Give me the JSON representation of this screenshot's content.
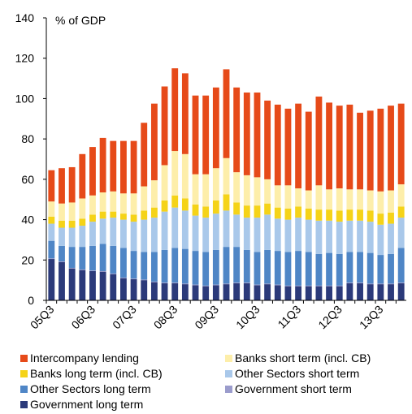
{
  "chart_data": {
    "type": "bar",
    "stacked": true,
    "unit_label": "% of GDP",
    "ylim": [
      0,
      140
    ],
    "yticks": [
      0,
      20,
      40,
      60,
      80,
      100,
      120,
      140
    ],
    "x_tick_labels": [
      "05Q3",
      "06Q3",
      "07Q3",
      "08Q3",
      "09Q3",
      "10Q3",
      "11Q3",
      "12Q3",
      "13Q3"
    ],
    "x_tick_every": 4,
    "categories": [
      "05Q3",
      "05Q4",
      "06Q1",
      "06Q2",
      "06Q3",
      "06Q4",
      "07Q1",
      "07Q2",
      "07Q3",
      "07Q4",
      "08Q1",
      "08Q2",
      "08Q3",
      "08Q4",
      "09Q1",
      "09Q2",
      "09Q3",
      "09Q4",
      "10Q1",
      "10Q2",
      "10Q3",
      "10Q4",
      "11Q1",
      "11Q2",
      "11Q3",
      "11Q4",
      "12Q1",
      "12Q2",
      "12Q3",
      "12Q4",
      "13Q1",
      "13Q2",
      "13Q3",
      "13Q4",
      "14Q1"
    ],
    "series": [
      {
        "name": "Government long term",
        "color": "#2b3a7a",
        "values": [
          20.5,
          19.0,
          15.8,
          15.0,
          14.5,
          14.2,
          13.0,
          11.0,
          10.5,
          10.0,
          9.0,
          8.5,
          8.5,
          8.0,
          7.5,
          7.0,
          7.5,
          8.0,
          8.5,
          8.5,
          7.5,
          8.0,
          7.5,
          7.0,
          7.0,
          7.0,
          7.0,
          7.0,
          7.0,
          8.5,
          8.5,
          8.0,
          8.0,
          8.0,
          8.5
        ]
      },
      {
        "name": "Government short term",
        "color": "#9b9ccc",
        "values": [
          0.3,
          0.3,
          0.3,
          0.3,
          0.3,
          0.3,
          0.3,
          0.3,
          0.3,
          0.3,
          0.3,
          0.3,
          0.3,
          0.3,
          0.3,
          0.3,
          0.3,
          0.3,
          0.3,
          0.3,
          0.3,
          0.3,
          0.3,
          0.3,
          0.3,
          0.3,
          0.3,
          0.3,
          0.3,
          0.3,
          0.3,
          0.3,
          0.3,
          0.3,
          0.3
        ]
      },
      {
        "name": "Other Sectors long term",
        "color": "#4f86c6",
        "values": [
          8.7,
          7.7,
          10.4,
          11.2,
          12.2,
          13.5,
          13.7,
          14.7,
          13.7,
          13.7,
          14.7,
          16.2,
          17.2,
          17.2,
          16.7,
          16.7,
          17.2,
          18.2,
          17.7,
          16.2,
          16.2,
          16.7,
          16.7,
          16.7,
          17.2,
          16.7,
          15.7,
          16.2,
          15.7,
          15.2,
          15.2,
          15.2,
          14.2,
          14.7,
          17.2
        ]
      },
      {
        "name": "Other Sectors short term",
        "color": "#a9c8ea",
        "values": [
          8.5,
          9.0,
          9.5,
          10.5,
          12.0,
          12.5,
          14.0,
          14.0,
          14.5,
          16.0,
          17.0,
          19.0,
          20.0,
          19.0,
          17.5,
          17.0,
          18.0,
          18.0,
          16.0,
          16.0,
          17.0,
          17.5,
          16.0,
          16.0,
          16.5,
          16.0,
          16.5,
          16.0,
          16.0,
          15.5,
          15.5,
          15.5,
          15.0,
          15.0,
          15.0
        ]
      },
      {
        "name": "Banks long term (incl. CB)",
        "color": "#f5d318",
        "values": [
          3.5,
          3.5,
          3.5,
          3.5,
          3.5,
          3.5,
          3.0,
          3.0,
          3.5,
          4.5,
          5.0,
          5.5,
          6.0,
          6.0,
          5.5,
          5.5,
          6.5,
          8.0,
          6.0,
          6.0,
          6.0,
          5.5,
          5.5,
          5.5,
          5.5,
          5.5,
          5.5,
          5.5,
          5.5,
          5.5,
          5.5,
          5.5,
          5.5,
          5.5,
          5.5
        ]
      },
      {
        "name": "Banks short term (incl. CB)",
        "color": "#fdeeaa",
        "values": [
          7.5,
          8.5,
          9.0,
          10.0,
          9.5,
          9.5,
          10.0,
          10.0,
          10.5,
          12.0,
          13.5,
          17.5,
          22.0,
          22.0,
          15.0,
          16.0,
          16.0,
          18.0,
          15.0,
          15.0,
          14.0,
          12.0,
          11.0,
          11.5,
          9.0,
          9.0,
          12.0,
          10.0,
          11.0,
          10.0,
          10.0,
          10.0,
          11.0,
          11.0,
          11.0
        ]
      },
      {
        "name": "Intercompany lending",
        "color": "#e64a19",
        "values": [
          15.5,
          17.5,
          17.5,
          22.0,
          24.0,
          27.0,
          25.0,
          26.0,
          26.0,
          31.5,
          38.0,
          39.0,
          41.0,
          40.0,
          39.0,
          39.0,
          40.0,
          44.0,
          42.0,
          41.0,
          42.0,
          39.0,
          40.0,
          38.0,
          42.0,
          39.0,
          44.0,
          43.0,
          41.0,
          42.0,
          38.0,
          39.5,
          41.0,
          42.0,
          40.0
        ]
      }
    ],
    "legend_position": "bottom",
    "legend_order": [
      "Intercompany lending",
      "Banks short term (incl. CB)",
      "Banks long term (incl. CB)",
      "Other Sectors short term",
      "Other Sectors long term",
      "Government short term",
      "Government long term"
    ],
    "grid": false
  }
}
